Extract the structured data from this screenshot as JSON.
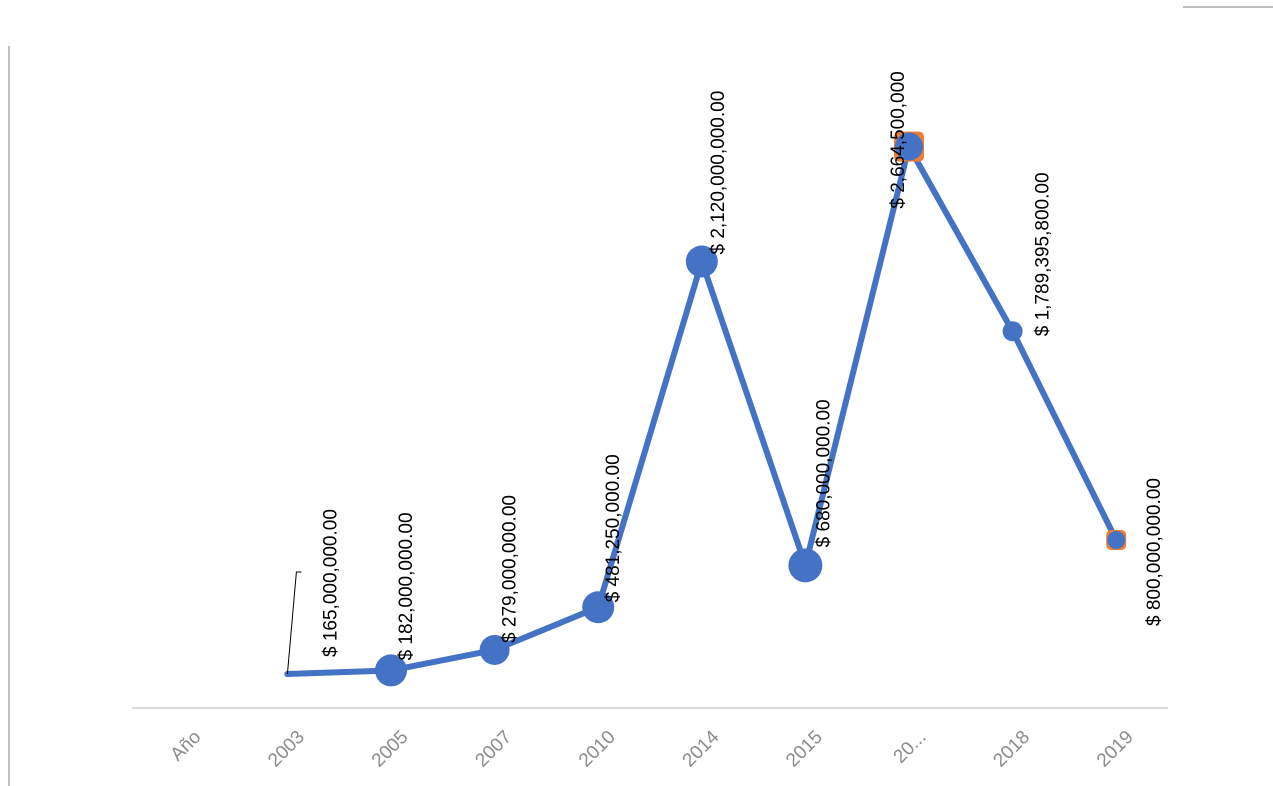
{
  "chart_data": {
    "type": "line",
    "categories": [
      "Año",
      "2003",
      "2005",
      "2007",
      "2010",
      "2014",
      "2015",
      "20...",
      "2018",
      "2019"
    ],
    "values": [
      null,
      165000000,
      182000000,
      279000000,
      481250000,
      2120000000,
      680000000,
      2664500000,
      1789395800,
      800000000
    ],
    "data_labels": [
      null,
      "$ 165,000,000.00",
      "$ 182,000,000.00",
      "$ 279,000,000.00",
      "$ 481,250,000.00",
      "$ 2,120,000,000.00",
      "$ 680,000,000.00",
      "$ 2,664,500,000",
      "$ 1,789,395,800.00",
      "$ 800,000,000.00"
    ],
    "highlighted_points": [
      "20...",
      "2019"
    ],
    "title": "",
    "xlabel": "",
    "ylabel": "",
    "ylim": [
      0,
      3000000000
    ],
    "grid": false,
    "legend": "none",
    "colors": {
      "line": "#4472c4",
      "highlight": "#ed7d31",
      "axis": "#d9d9d9",
      "tick_text": "#8c8c8c",
      "label_text": "#000000"
    }
  }
}
